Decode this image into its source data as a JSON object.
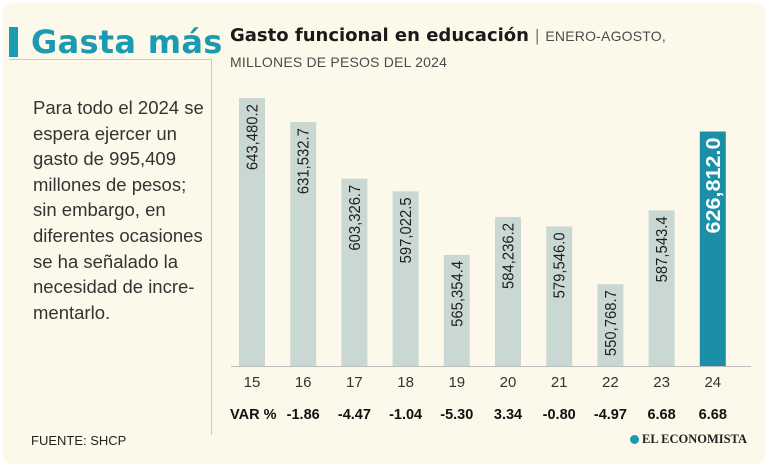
{
  "headline": "Gasta más",
  "intro": "Para todo el 2024 se espera ejercer un gasto de 995,409 millones de pesos; sin embargo, en diferentes ocasiones se ha señalado la necesidad de incre-mentarlo.",
  "source": "FUENTE: SHCP",
  "brand": "EL ECONOMISTA",
  "colors": {
    "accent": "#1a9bb1",
    "bar": "#c9d8d3",
    "highlight_bar": "#1a8fa6",
    "background": "#fdf9ea"
  },
  "chart_data": {
    "type": "bar",
    "title": "Gasto funcional en educación",
    "subtitle_line1": "ENERO-AGOSTO,",
    "subtitle_line2": "MILLONES DE PESOS DEL 2024",
    "categories": [
      "15",
      "16",
      "17",
      "18",
      "19",
      "20",
      "21",
      "22",
      "23",
      "24"
    ],
    "values": [
      643480.2,
      631532.7,
      603326.7,
      597022.5,
      565354.4,
      584236.2,
      579546.0,
      550768.7,
      587543.4,
      626812.0
    ],
    "value_labels": [
      "643,480.2",
      "631,532.7",
      "603,326.7",
      "597,022.5",
      "565,354.4",
      "584,236.2",
      "579,546.0",
      "550,768.7",
      "587,543.4",
      "626,812.0"
    ],
    "highlight_index": 9,
    "var_label": "VAR %",
    "var_values": [
      "-1.86",
      "-4.47",
      "-1.04",
      "-5.30",
      "3.34",
      "-0.80",
      "-4.97",
      "6.68",
      "6.68"
    ],
    "ylim": [
      510000,
      650000
    ],
    "grid": false,
    "legend": "none"
  }
}
